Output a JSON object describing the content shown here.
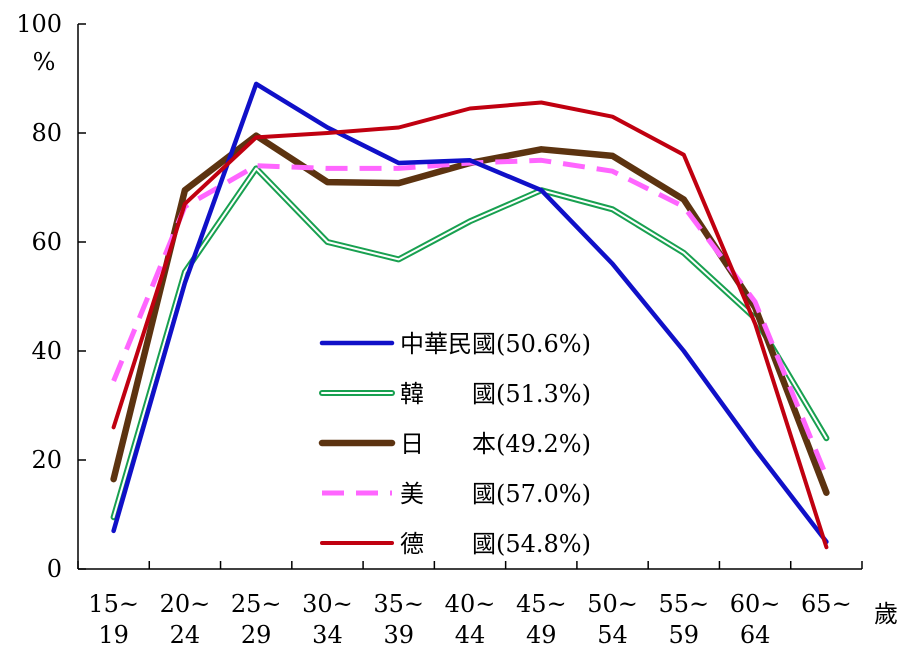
{
  "chart_data": {
    "type": "line",
    "title": "",
    "y_unit_label": "%",
    "x_unit_label": "歲",
    "ylim": [
      0,
      100
    ],
    "yticks": [
      0,
      20,
      40,
      60,
      80,
      100
    ],
    "grid": false,
    "legend_position": "center-bottom (inside plot)",
    "categories": [
      {
        "top": "15~",
        "bottom": "19"
      },
      {
        "top": "20~",
        "bottom": "24"
      },
      {
        "top": "25~",
        "bottom": "29"
      },
      {
        "top": "30~",
        "bottom": "34"
      },
      {
        "top": "35~",
        "bottom": "39"
      },
      {
        "top": "40~",
        "bottom": "44"
      },
      {
        "top": "45~",
        "bottom": "49"
      },
      {
        "top": "50~",
        "bottom": "54"
      },
      {
        "top": "55~",
        "bottom": "59"
      },
      {
        "top": "60~",
        "bottom": "64"
      },
      {
        "top": "65~",
        "bottom": ""
      }
    ],
    "series": [
      {
        "name": "中華民國(50.6%)",
        "style": "solid-thick",
        "color": "#1010c8",
        "values": [
          7.0,
          52.5,
          89.0,
          81.0,
          74.5,
          75.0,
          69.5,
          56.0,
          40.0,
          22.0,
          5.0
        ]
      },
      {
        "name": "韓　　國(51.3%)",
        "style": "double",
        "color": "#18a050",
        "values": [
          9.5,
          54.5,
          73.5,
          60.0,
          56.8,
          63.8,
          69.5,
          66.0,
          58.0,
          46.0,
          24.0
        ]
      },
      {
        "name": "日　　本(49.2%)",
        "style": "solid-heavy",
        "color": "#5c3310",
        "values": [
          16.5,
          69.5,
          79.5,
          71.0,
          70.8,
          74.5,
          77.0,
          75.8,
          67.8,
          48.0,
          14.0
        ]
      },
      {
        "name": "美　　國(57.0%)",
        "style": "dashed",
        "color": "#ff66ff",
        "values": [
          34.5,
          66.5,
          74.0,
          73.5,
          73.5,
          74.5,
          75.0,
          73.0,
          66.5,
          49.0,
          17.0
        ]
      },
      {
        "name": "德　　國(54.8%)",
        "style": "solid",
        "color": "#c00010",
        "values": [
          26.0,
          67.0,
          79.2,
          80.0,
          81.0,
          84.5,
          85.6,
          83.0,
          76.0,
          45.0,
          4.0
        ]
      }
    ]
  }
}
